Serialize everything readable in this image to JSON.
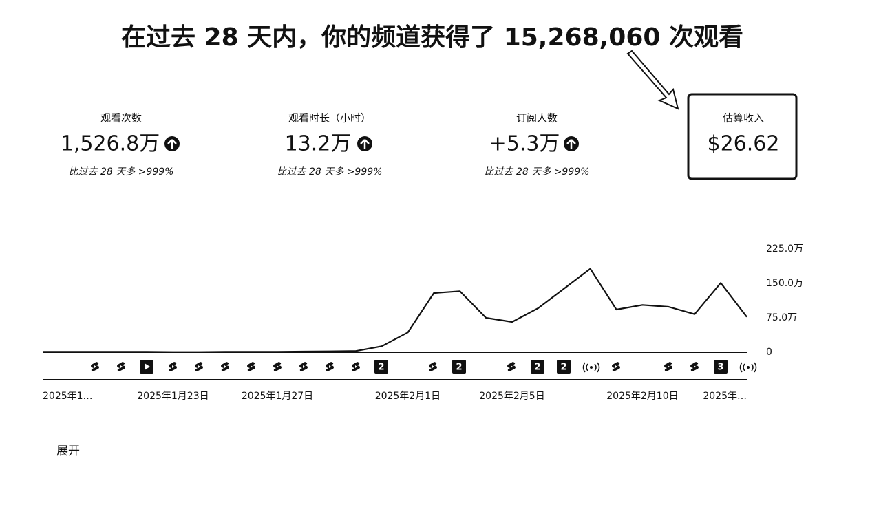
{
  "header": {
    "title": "在过去 28 天内，你的频道获得了 15,268,060 次观看"
  },
  "metrics": [
    {
      "label": "观看次数",
      "value": "1,526.8万",
      "change": "比过去 28 天多 >999%"
    },
    {
      "label": "观看时长（小时）",
      "value": "13.2万",
      "change": "比过去 28 天多 >999%"
    },
    {
      "label": "订阅人数",
      "value": "+5.3万",
      "change": "比过去 28 天多 >999%"
    },
    {
      "label": "估算收入",
      "value": "$26.62"
    }
  ],
  "chart_data": {
    "type": "line",
    "categories": [
      "2025年1…",
      null,
      null,
      null,
      null,
      "2025年1月23日",
      null,
      null,
      null,
      "2025年1月27日",
      null,
      null,
      null,
      null,
      "2025年2月1日",
      null,
      null,
      null,
      "2025年2月5日",
      null,
      null,
      null,
      null,
      "2025年2月10日",
      null,
      null,
      null,
      "2025年…"
    ],
    "series": [
      {
        "name": "观看次数",
        "color": "#111111",
        "values": [
          1,
          1,
          1,
          1,
          1,
          0.5,
          0.5,
          1,
          1,
          1,
          1.5,
          2,
          2.5,
          13,
          43,
          129,
          133,
          75,
          66,
          96,
          139,
          182,
          93,
          103,
          99,
          83,
          151,
          77
        ]
      }
    ],
    "ylim": [
      0,
      225
    ],
    "yticks": [
      0,
      {
        "value": 75,
        "label": "75.0万"
      },
      {
        "value": 150,
        "label": "150.0万"
      },
      {
        "value": 225,
        "label": "225.0万"
      }
    ],
    "grid": false
  },
  "upload_badges": [
    "2",
    "2",
    "2",
    "2",
    "2",
    "3"
  ],
  "expand": "展开"
}
